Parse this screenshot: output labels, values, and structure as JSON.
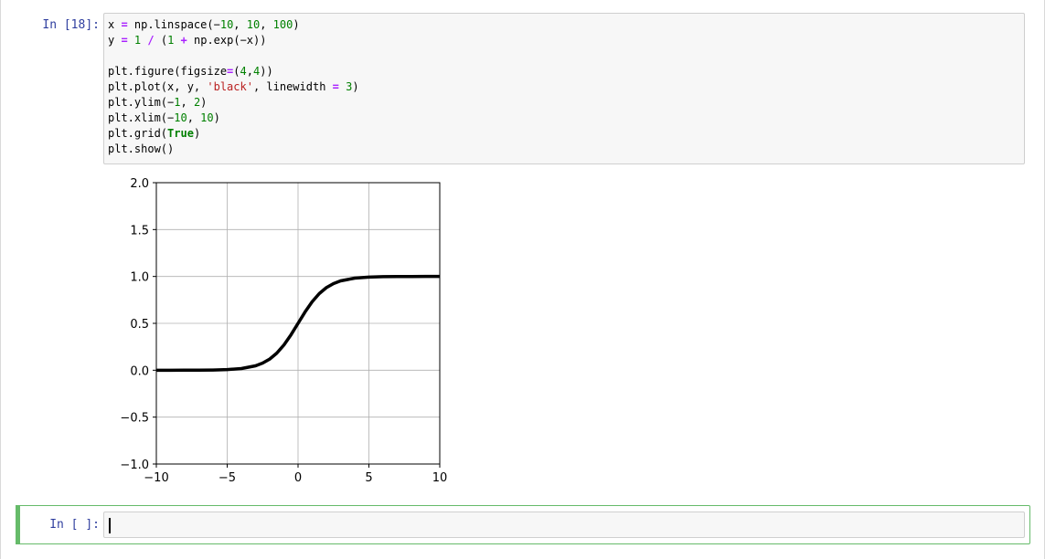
{
  "cell1": {
    "prompt": "In  [18]:",
    "code": [
      [
        {
          "t": "x "
        },
        {
          "t": "=",
          "c": "op"
        },
        {
          "t": " np.linspace(−"
        },
        {
          "t": "10",
          "c": "num"
        },
        {
          "t": ", "
        },
        {
          "t": "10",
          "c": "num"
        },
        {
          "t": ", "
        },
        {
          "t": "100",
          "c": "num"
        },
        {
          "t": ")"
        }
      ],
      [
        {
          "t": "y "
        },
        {
          "t": "=",
          "c": "op"
        },
        {
          "t": " "
        },
        {
          "t": "1",
          "c": "num"
        },
        {
          "t": " "
        },
        {
          "t": "/",
          "c": "op"
        },
        {
          "t": " ("
        },
        {
          "t": "1",
          "c": "num"
        },
        {
          "t": " "
        },
        {
          "t": "+",
          "c": "op"
        },
        {
          "t": " np.exp(−x))"
        }
      ],
      [],
      [
        {
          "t": "plt.figure(figsize"
        },
        {
          "t": "=",
          "c": "op"
        },
        {
          "t": "("
        },
        {
          "t": "4",
          "c": "num"
        },
        {
          "t": ","
        },
        {
          "t": "4",
          "c": "num"
        },
        {
          "t": "))"
        }
      ],
      [
        {
          "t": "plt.plot(x, y, "
        },
        {
          "t": "'black'",
          "c": "str"
        },
        {
          "t": ", linewidth "
        },
        {
          "t": "=",
          "c": "op"
        },
        {
          "t": " "
        },
        {
          "t": "3",
          "c": "num"
        },
        {
          "t": ")"
        }
      ],
      [
        {
          "t": "plt.ylim(−"
        },
        {
          "t": "1",
          "c": "num"
        },
        {
          "t": ", "
        },
        {
          "t": "2",
          "c": "num"
        },
        {
          "t": ")"
        }
      ],
      [
        {
          "t": "plt.xlim(−"
        },
        {
          "t": "10",
          "c": "num"
        },
        {
          "t": ", "
        },
        {
          "t": "10",
          "c": "num"
        },
        {
          "t": ")"
        }
      ],
      [
        {
          "t": "plt.grid("
        },
        {
          "t": "True",
          "c": "kw"
        },
        {
          "t": ")"
        }
      ],
      [
        {
          "t": "plt.show()"
        }
      ]
    ]
  },
  "cell2": {
    "prompt": "In  [ ]:",
    "value": ""
  },
  "chart_data": {
    "type": "line",
    "xlim": [
      -10,
      10
    ],
    "ylim": [
      -1,
      2
    ],
    "xticks": [
      -10,
      -5,
      0,
      5,
      10
    ],
    "xtick_labels": [
      "−10",
      "−5",
      "0",
      "5",
      "10"
    ],
    "yticks": [
      -1.0,
      -0.5,
      0.0,
      0.5,
      1.0,
      1.5,
      2.0
    ],
    "ytick_labels": [
      "−1.0",
      "−0.5",
      "0.0",
      "0.5",
      "1.0",
      "1.5",
      "2.0"
    ],
    "grid": true,
    "line_color": "#000000",
    "series": [
      {
        "x": [
          -10,
          -9,
          -8,
          -7,
          -6,
          -5,
          -4,
          -3,
          -2.5,
          -2,
          -1.5,
          -1,
          -0.5,
          0,
          0.5,
          1,
          1.5,
          2,
          2.5,
          3,
          4,
          5,
          6,
          7,
          8,
          9,
          10
        ],
        "y": [
          4.54e-05,
          0.000123,
          0.000335,
          0.000911,
          0.00247,
          0.00669,
          0.018,
          0.0474,
          0.0759,
          0.1192,
          0.1824,
          0.2689,
          0.3775,
          0.5,
          0.6225,
          0.7311,
          0.8176,
          0.8808,
          0.9241,
          0.9526,
          0.982,
          0.9933,
          0.9975,
          0.9991,
          0.9997,
          0.9999,
          0.99995
        ]
      }
    ]
  }
}
